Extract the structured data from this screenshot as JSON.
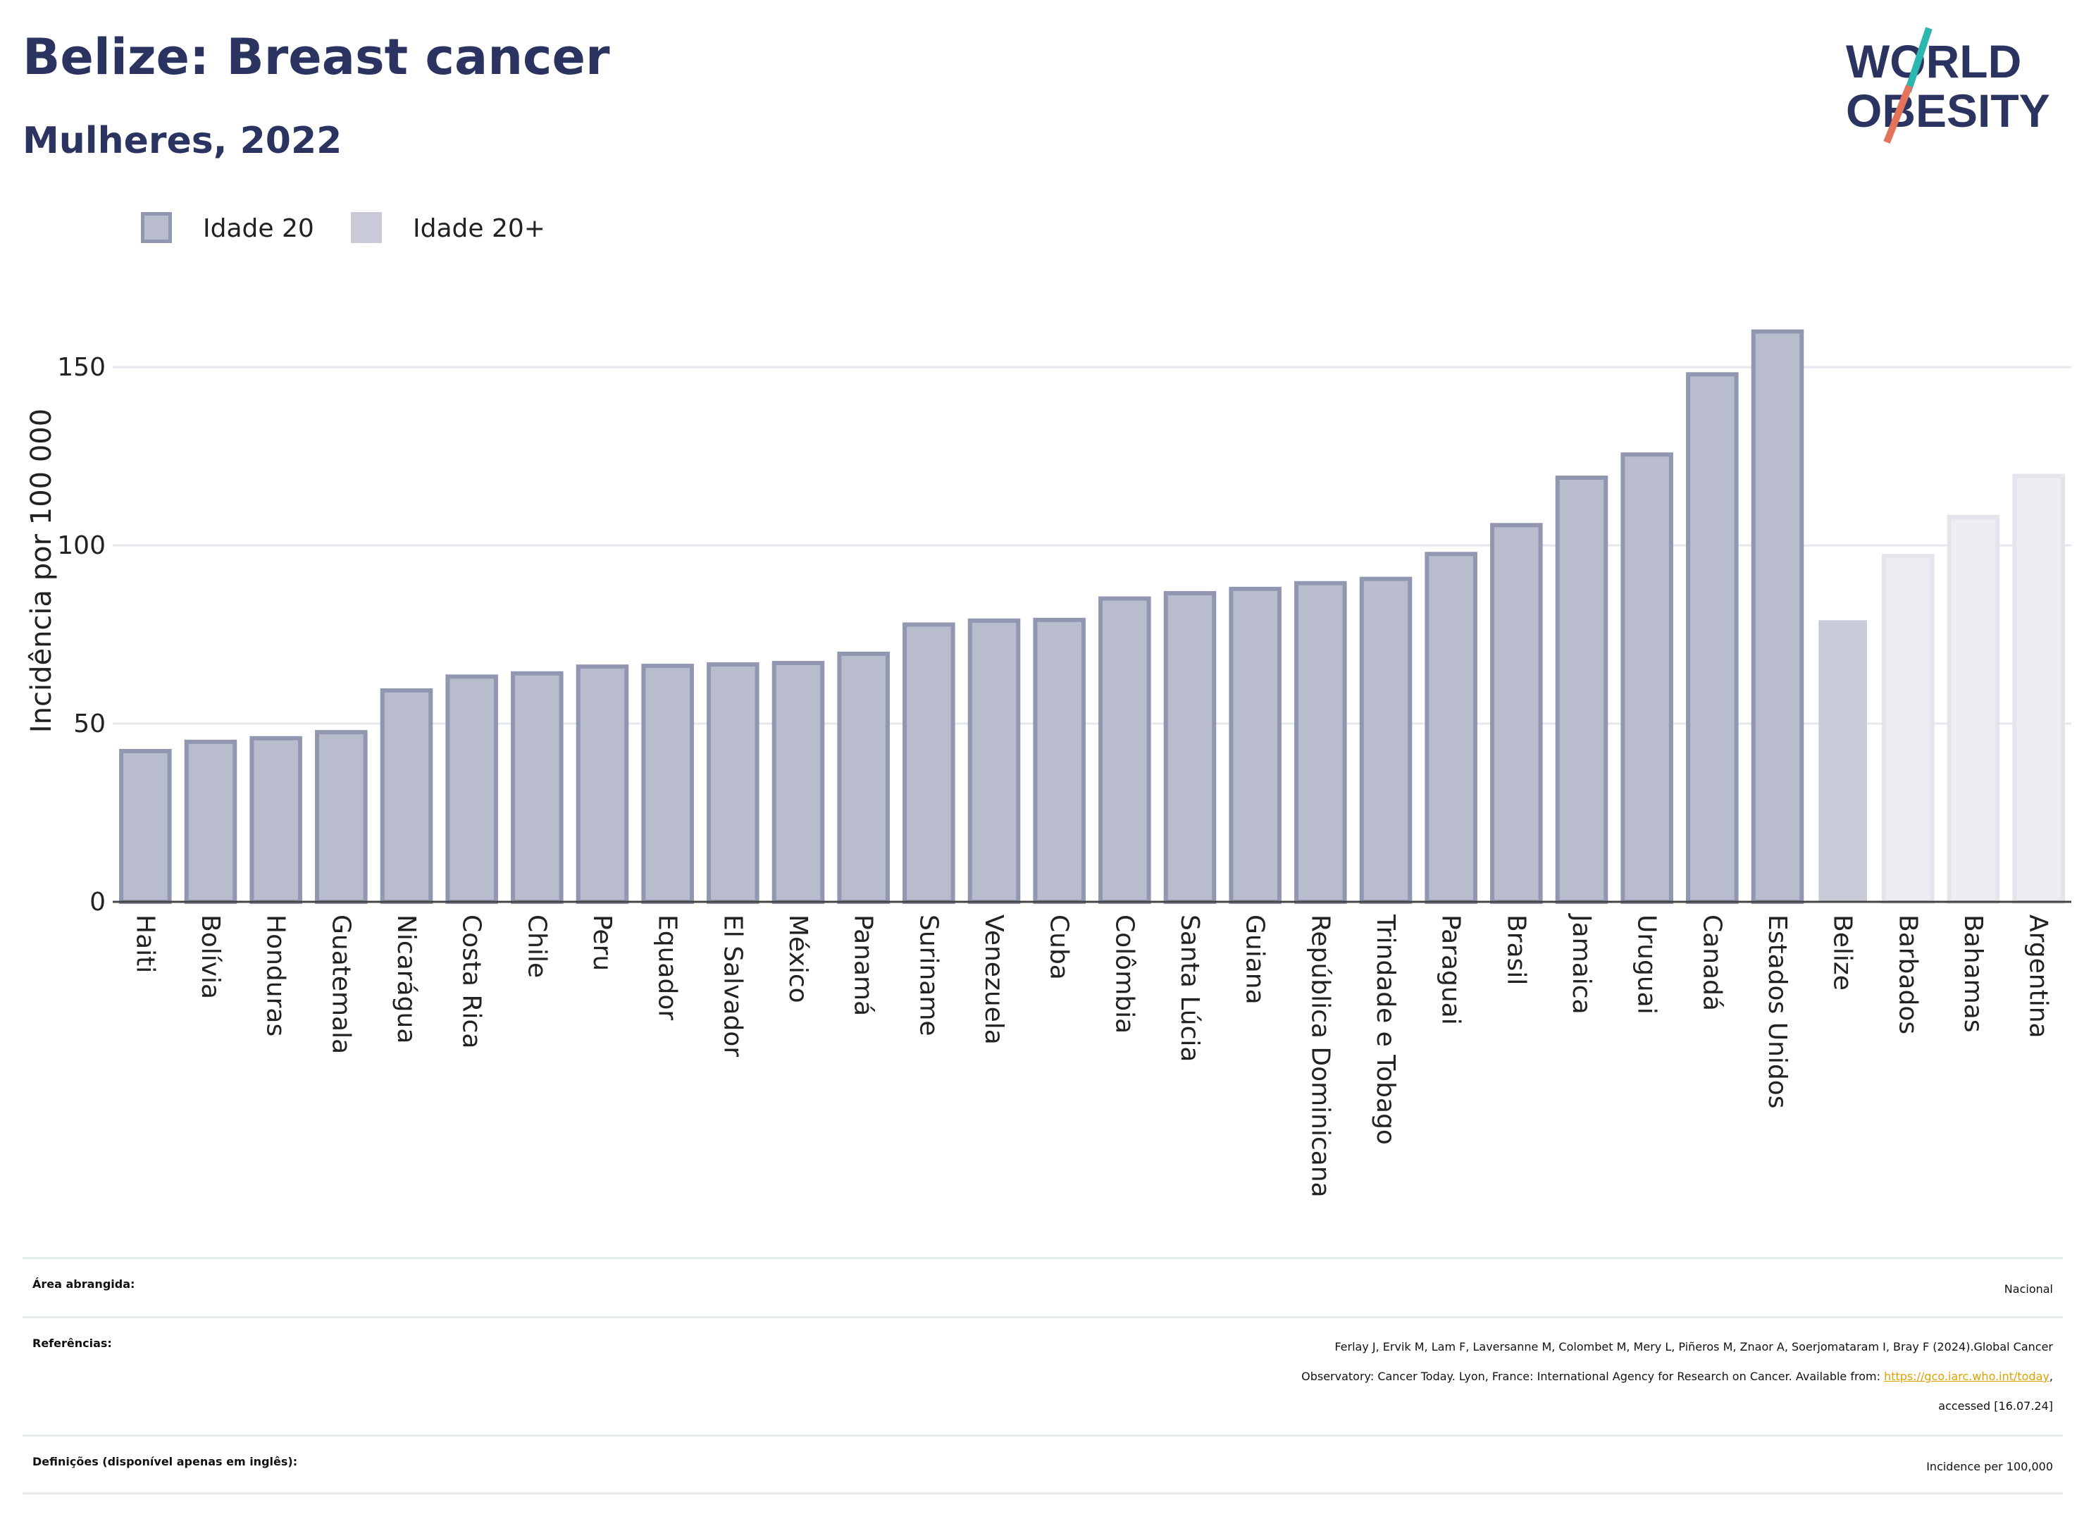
{
  "title": "Belize: Breast cancer",
  "subtitle": "Mulheres, 2022",
  "logo": {
    "line1": "WORLD",
    "line2": "OBESITY"
  },
  "legend": [
    {
      "label": "Idade 20"
    },
    {
      "label": "Idade 20+"
    }
  ],
  "colors": {
    "bar_fill": "#b9bccc",
    "bar_border": "#9197b1",
    "highlight_fill": "#c8cad7",
    "faded_fill": "#eceef2",
    "faded_border": "#e3e5ea",
    "title": "#2b3460",
    "logo_accent_teal": "#2bb6b0",
    "logo_accent_red": "#e5735c",
    "link": "#e0a100"
  },
  "chart_data": {
    "type": "bar",
    "ylabel": "Incidência por 100 000",
    "xlabel": "",
    "ylim": [
      0,
      170
    ],
    "yticks": [
      0,
      50,
      100,
      150
    ],
    "grid": true,
    "legend_position": "top-left",
    "categories": [
      "Haiti",
      "Bolívia",
      "Honduras",
      "Guatemala",
      "Nicarágua",
      "Costa Rica",
      "Chile",
      "Peru",
      "Equador",
      "El Salvador",
      "México",
      "Panamá",
      "Suriname",
      "Venezuela",
      "Cuba",
      "Colômbia",
      "Santa Lúcia",
      "Guiana",
      "República Dominicana",
      "Trindade e Tobago",
      "Paraguai",
      "Brasil",
      "Jamaica",
      "Uruguai",
      "Canadá",
      "Estados Unidos",
      "Belize",
      "Barbados",
      "Bahamas",
      "Argentina"
    ],
    "values": [
      42.3,
      44.9,
      45.9,
      47.6,
      59.3,
      63.2,
      64.1,
      66.0,
      66.2,
      66.6,
      67.0,
      69.6,
      77.8,
      78.9,
      79.1,
      85.1,
      86.6,
      87.8,
      89.4,
      90.6,
      97.6,
      105.7,
      119.0,
      125.5,
      148.0,
      160.0,
      79.0,
      97.0,
      108.0,
      119.5
    ],
    "styles": [
      "series1",
      "series1",
      "series1",
      "series1",
      "series1",
      "series1",
      "series1",
      "series1",
      "series1",
      "series1",
      "series1",
      "series1",
      "series1",
      "series1",
      "series1",
      "series1",
      "series1",
      "series1",
      "series1",
      "series1",
      "series1",
      "series1",
      "series1",
      "series1",
      "series1",
      "series1",
      "highlight",
      "faded",
      "faded",
      "faded"
    ]
  },
  "info": {
    "area_label": "Área abrangida:",
    "area_value": "Nacional",
    "refs_label": "Referências:",
    "refs_line1": "Ferlay J, Ervik M, Lam F, Laversanne M, Colombet M, Mery L, Piñeros M, Znaor A, Soerjomataram I, Bray F (2024).Global Cancer",
    "refs_line2_pre": "Observatory: Cancer Today. Lyon, France: International Agency for Research on Cancer. Available from: ",
    "refs_link": "https://gco.iarc.who.int/today",
    "refs_line2_post": ",",
    "refs_line3": "accessed [16.07.24]",
    "def_label": "Definições (disponível apenas em inglês):",
    "def_value": "Incidence per 100,000"
  }
}
